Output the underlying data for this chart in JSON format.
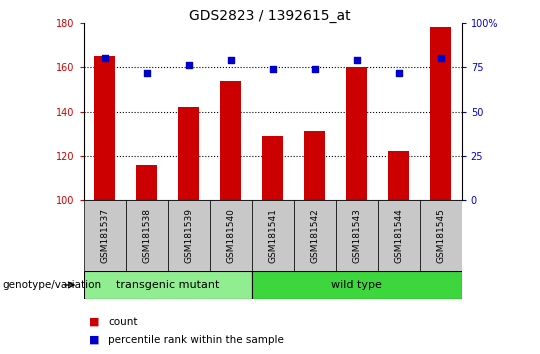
{
  "title": "GDS2823 / 1392615_at",
  "samples": [
    "GSM181537",
    "GSM181538",
    "GSM181539",
    "GSM181540",
    "GSM181541",
    "GSM181542",
    "GSM181543",
    "GSM181544",
    "GSM181545"
  ],
  "counts": [
    165,
    116,
    142,
    154,
    129,
    131,
    160,
    122,
    178
  ],
  "percentile_ranks": [
    80,
    72,
    76,
    79,
    74,
    74,
    79,
    72,
    80
  ],
  "ylim_left": [
    100,
    180
  ],
  "ylim_right": [
    0,
    100
  ],
  "yticks_left": [
    100,
    120,
    140,
    160,
    180
  ],
  "yticks_right": [
    0,
    25,
    50,
    75,
    100
  ],
  "ytick_labels_right": [
    "0",
    "25",
    "50",
    "75",
    "100%"
  ],
  "groups": [
    {
      "label": "transgenic mutant",
      "start": 0,
      "end": 3,
      "color": "#90EE90"
    },
    {
      "label": "wild type",
      "start": 4,
      "end": 8,
      "color": "#3DD63D"
    }
  ],
  "group_label": "genotype/variation",
  "bar_color": "#CC0000",
  "dot_color": "#0000CC",
  "bar_width": 0.5,
  "background_color": "#ffffff",
  "tick_color_left": "#CC0000",
  "tick_color_right": "#0000CC",
  "legend_count_color": "#CC0000",
  "legend_pct_color": "#0000CC",
  "xticklabel_bg": "#c8c8c8",
  "grid_dotted_vals": [
    120,
    140,
    160
  ],
  "title_fontsize": 10,
  "tick_fontsize": 7,
  "sample_fontsize": 6.5,
  "group_fontsize": 8,
  "legend_fontsize": 7.5
}
